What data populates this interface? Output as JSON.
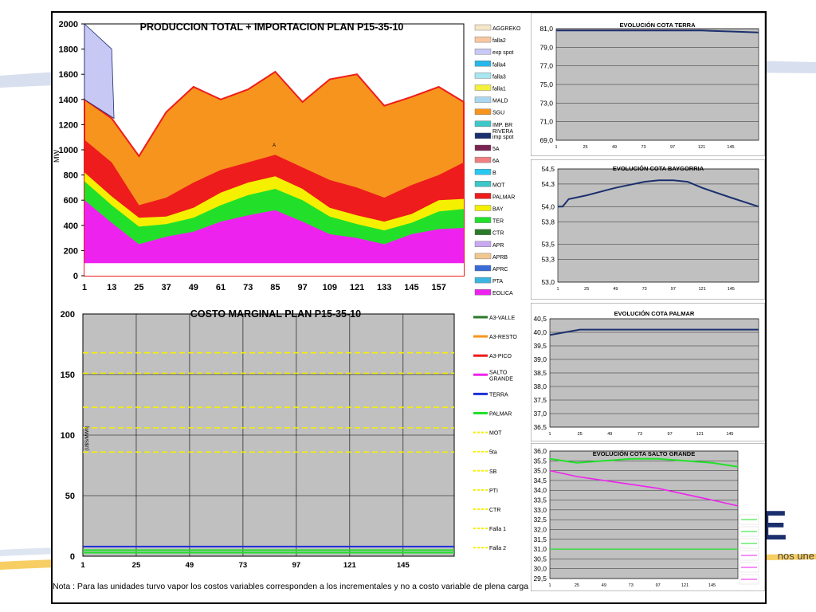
{
  "production": {
    "title": "PRODUCCION TOTAL + IMPORTACION  PLAN    P15-35-10",
    "ylabel": "MW",
    "y_ticks": [
      "0",
      "200",
      "400",
      "600",
      "800",
      "1000",
      "1200",
      "1400",
      "1600",
      "1800",
      "2000"
    ],
    "x_ticks": [
      "1",
      "13",
      "25",
      "37",
      "49",
      "61",
      "73",
      "85",
      "97",
      "109",
      "121",
      "133",
      "145",
      "157"
    ],
    "ylim": [
      0,
      2000
    ],
    "legend": [
      {
        "label": "AGGREKO",
        "color": "#f5e6c8"
      },
      {
        "label": "falla2",
        "color": "#f8c7a0"
      },
      {
        "label": "exp spot",
        "color": "#c8c8f5"
      },
      {
        "label": "falla4",
        "color": "#29b6e8"
      },
      {
        "label": "falla3",
        "color": "#a8e6f0"
      },
      {
        "label": "falla1",
        "color": "#f5f03c"
      },
      {
        "label": "MALD",
        "color": "#a8d8f0"
      },
      {
        "label": "SGU",
        "color": "#f7941d"
      },
      {
        "label": "IMP. BR RIVERA",
        "color": "#3cc8c8"
      },
      {
        "label": "imp spot",
        "color": "#1b2f6e"
      },
      {
        "label": "5A",
        "color": "#7a2350"
      },
      {
        "label": "6A",
        "color": "#f08080"
      },
      {
        "label": "B",
        "color": "#29c8f0"
      },
      {
        "label": "MOT",
        "color": "#3cc8c8"
      },
      {
        "label": "PALMAR",
        "color": "#ee1c1c"
      },
      {
        "label": "BAY",
        "color": "#f5f000"
      },
      {
        "label": "TER",
        "color": "#22e02a"
      },
      {
        "label": "CTR",
        "color": "#2a7a2a"
      },
      {
        "label": "APR",
        "color": "#c8a8f0"
      },
      {
        "label": "APRB",
        "color": "#f0c890"
      },
      {
        "label": "APRC",
        "color": "#3a6ad8"
      },
      {
        "label": "PTA",
        "color": "#3cb4e0"
      },
      {
        "label": "EOLICA",
        "color": "#ee22ee"
      }
    ],
    "annotation": "A"
  },
  "marginal": {
    "title": "COSTO MARGINAL  PLAN    P15-35-10",
    "ylabel": "(U$S/MWh)",
    "y_ticks": [
      "0",
      "50",
      "100",
      "150",
      "200"
    ],
    "x_ticks": [
      "1",
      "25",
      "49",
      "73",
      "97",
      "121",
      "145"
    ],
    "ylim": [
      0,
      200
    ],
    "legend": [
      {
        "label": "A3-VALLE",
        "color": "#2a7a2a",
        "style": "solid"
      },
      {
        "label": "A3-RESTO",
        "color": "#f7941d",
        "style": "solid"
      },
      {
        "label": "A3-PICO",
        "color": "#ee1c1c",
        "style": "solid"
      },
      {
        "label": "SALTO GRANDE",
        "color": "#ee22ee",
        "style": "solid"
      },
      {
        "label": "TERRA",
        "color": "#1b2fd8",
        "style": "solid"
      },
      {
        "label": "PALMAR",
        "color": "#22e02a",
        "style": "solid"
      },
      {
        "label": "MOT",
        "color": "#f5f000",
        "style": "dash"
      },
      {
        "label": "5ta",
        "color": "#f5f000",
        "style": "dash"
      },
      {
        "label": "SB",
        "color": "#f5f000",
        "style": "dash"
      },
      {
        "label": "PTI",
        "color": "#f5f000",
        "style": "dash"
      },
      {
        "label": "CTR",
        "color": "#f5f000",
        "style": "dash"
      },
      {
        "label": "Falla 1",
        "color": "#f5f000",
        "style": "dash"
      },
      {
        "label": "Falla 2",
        "color": "#f5f000",
        "style": "dash"
      }
    ],
    "dashed_levels": [
      168,
      151,
      123,
      106,
      86
    ],
    "solid_levels": [
      {
        "value": 8,
        "color": "#1b2fd8"
      },
      {
        "value": 5,
        "color": "#22e02a"
      },
      {
        "value": 3,
        "color": "#22e02a"
      }
    ]
  },
  "terra": {
    "title": "EVOLUCIÓN COTA TERRA",
    "y_ticks": [
      "69,0",
      "71,0",
      "73,0",
      "75,0",
      "77,0",
      "79,0",
      "81,0"
    ],
    "x_ticks": [
      "1",
      "25",
      "49",
      "73",
      "97",
      "121",
      "145"
    ],
    "ylim": [
      69,
      81
    ]
  },
  "baygorria": {
    "title": "EVOLUCIÓN COTA BAYGORRIA",
    "y_ticks": [
      "53,0",
      "53,3",
      "53,5",
      "53,8",
      "54,0",
      "54,3",
      "54,5"
    ],
    "x_ticks": [
      "1",
      "25",
      "49",
      "73",
      "97",
      "121",
      "145"
    ],
    "ylim": [
      53.0,
      54.5
    ]
  },
  "palmar": {
    "title": "EVOLUCIÓN COTA PALMAR",
    "y_ticks": [
      "36,5",
      "37,0",
      "37,5",
      "38,0",
      "38,5",
      "39,0",
      "39,5",
      "40,0",
      "40,5"
    ],
    "x_ticks": [
      "1",
      "25",
      "49",
      "73",
      "97",
      "121",
      "145"
    ],
    "ylim": [
      36.5,
      40.5
    ]
  },
  "salto": {
    "title": "EVOLUCIÓN COTA SALTO GRANDE",
    "y_ticks": [
      "29,5",
      "30,0",
      "30,5",
      "31,0",
      "31,5",
      "32,0",
      "32,5",
      "33,0",
      "33,5",
      "34,0",
      "34,5",
      "35,0",
      "35,5",
      "36,0"
    ],
    "x_ticks": [
      "1",
      "25",
      "49",
      "73",
      "97",
      "121",
      "145"
    ],
    "ylim": [
      29.5,
      36.0
    ]
  },
  "chart_data": [
    {
      "type": "area",
      "title": "PRODUCCION TOTAL + IMPORTACION  PLAN    P15-35-10",
      "ylabel": "MW",
      "ylim": [
        0,
        2000
      ],
      "x": [
        1,
        13,
        25,
        37,
        49,
        61,
        73,
        85,
        97,
        109,
        121,
        133,
        145,
        157,
        168
      ],
      "series": [
        {
          "name": "PTA",
          "values": [
            100,
            100,
            100,
            100,
            100,
            100,
            100,
            100,
            100,
            100,
            100,
            100,
            100,
            100,
            100
          ]
        },
        {
          "name": "EOLICA",
          "values": [
            600,
            420,
            250,
            310,
            350,
            430,
            480,
            520,
            430,
            330,
            300,
            250,
            330,
            370,
            380
          ]
        },
        {
          "name": "TER",
          "values": [
            750,
            560,
            390,
            410,
            460,
            560,
            640,
            690,
            600,
            470,
            410,
            360,
            420,
            510,
            530
          ]
        },
        {
          "name": "BAY",
          "values": [
            820,
            630,
            460,
            470,
            540,
            660,
            740,
            790,
            690,
            540,
            480,
            430,
            490,
            600,
            610
          ]
        },
        {
          "name": "PALMAR",
          "values": [
            1080,
            900,
            560,
            620,
            740,
            840,
            900,
            960,
            860,
            760,
            700,
            620,
            720,
            800,
            900
          ]
        },
        {
          "name": "SGU",
          "values": [
            1400,
            1250,
            950,
            1300,
            1500,
            1400,
            1480,
            1620,
            1380,
            1560,
            1600,
            1350,
            1420,
            1500,
            1380
          ]
        },
        {
          "name": "exp spot",
          "values": [
            2000,
            1800,
            0,
            0,
            0,
            0,
            0,
            0,
            0,
            0,
            0,
            0,
            0,
            0,
            0
          ]
        }
      ]
    },
    {
      "type": "line",
      "title": "COSTO MARGINAL  PLAN    P15-35-10",
      "ylabel": "(U$S/MWh)",
      "ylim": [
        0,
        200
      ],
      "series": [
        {
          "name": "TERRA",
          "values": [
            8,
            8
          ]
        },
        {
          "name": "PALMAR",
          "values": [
            5,
            5
          ]
        }
      ]
    },
    {
      "type": "line",
      "title": "EVOLUCIÓN COTA TERRA",
      "ylim": [
        69,
        81
      ],
      "x": [
        1,
        25,
        49,
        73,
        97,
        121,
        145,
        168
      ],
      "series": [
        {
          "values": [
            80.8,
            80.8,
            80.8,
            80.8,
            80.8,
            80.8,
            80.7,
            80.6
          ]
        }
      ]
    },
    {
      "type": "line",
      "title": "EVOLUCIÓN COTA BAYGORRIA",
      "ylim": [
        53.0,
        54.5
      ],
      "x": [
        1,
        5,
        10,
        25,
        49,
        73,
        85,
        97,
        109,
        121,
        145,
        168
      ],
      "series": [
        {
          "values": [
            54.0,
            54.0,
            54.1,
            54.15,
            54.25,
            54.33,
            54.35,
            54.35,
            54.33,
            54.25,
            54.12,
            54.0
          ]
        }
      ]
    },
    {
      "type": "line",
      "title": "EVOLUCIÓN COTA PALMAR",
      "ylim": [
        36.5,
        40.5
      ],
      "x": [
        1,
        25,
        49,
        73,
        97,
        121,
        145,
        168
      ],
      "series": [
        {
          "values": [
            39.9,
            40.1,
            40.1,
            40.1,
            40.1,
            40.1,
            40.1,
            40.1
          ]
        }
      ]
    },
    {
      "type": "line",
      "title": "EVOLUCIÓN COTA SALTO GRANDE",
      "ylim": [
        29.5,
        36.0
      ],
      "x": [
        1,
        25,
        49,
        73,
        97,
        121,
        145,
        168
      ],
      "series": [
        {
          "values": [
            35.6,
            35.4,
            35.5,
            35.6,
            35.6,
            35.5,
            35.4,
            35.2
          ]
        },
        {
          "values": [
            35.0,
            34.7,
            34.5,
            34.3,
            34.1,
            33.8,
            33.5,
            33.2
          ]
        },
        {
          "values": [
            31.0,
            31.0,
            31.0,
            31.0,
            31.0,
            31.0,
            31.0,
            31.0
          ]
        }
      ]
    }
  ],
  "note": "Nota : Para las unidades turvo vapor los costos variables corresponden a los incrementales y no a costo variable de plena carga",
  "logo": {
    "mark": "TE",
    "text": "nos une"
  }
}
